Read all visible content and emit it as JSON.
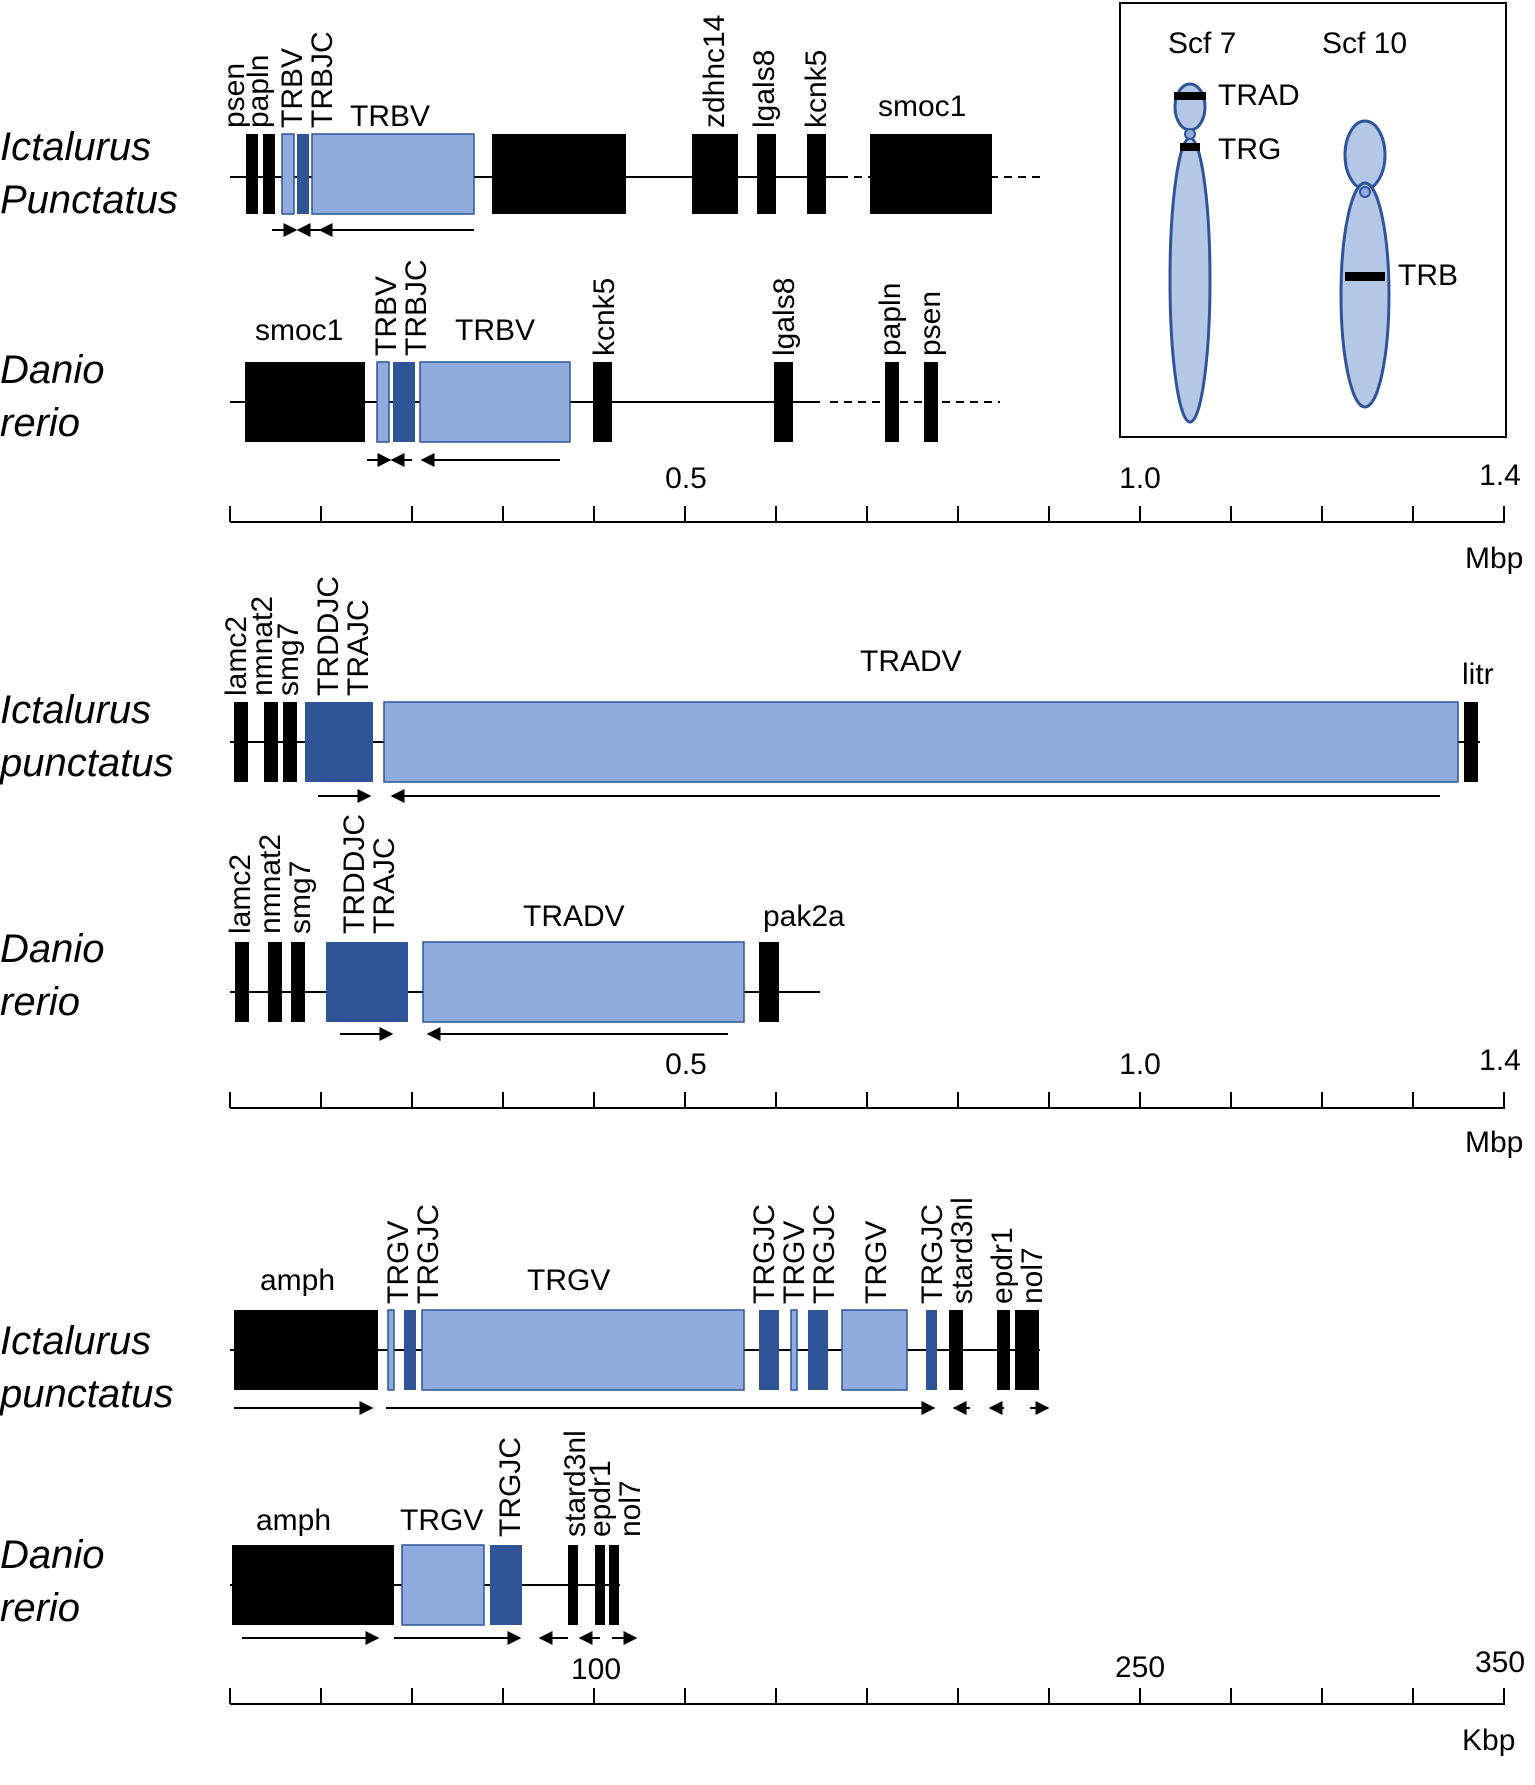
{
  "colors": {
    "black": "#000000",
    "light": "#8faadc",
    "dark": "#2f5597",
    "chrom": "#b4c7e7",
    "chromStroke": "#2f5597"
  },
  "inset": {
    "scf7_label": "Scf 7",
    "scf10_label": "Scf 10",
    "trad_label": "TRAD",
    "trg_label": "TRG",
    "trb_label": "TRB"
  },
  "panels": [
    {
      "unit": "Mbp",
      "tick_labels": [
        "0.5",
        "1.0",
        "1.4"
      ],
      "tracks": [
        {
          "species": [
            "Ictalurus",
            "Punctatus"
          ],
          "labels": [
            "psen",
            "papln",
            "TRBV",
            "TRBJC",
            "TRBV",
            "zdhhc14",
            "lgals8",
            "kcnk5",
            "smoc1"
          ]
        },
        {
          "species": [
            "Danio",
            "rerio"
          ],
          "labels": [
            "smoc1",
            "TRBV",
            "TRBJC",
            "TRBV",
            "kcnk5",
            "lgals8",
            "papln",
            "psen"
          ]
        }
      ]
    },
    {
      "unit": "Mbp",
      "tick_labels": [
        "0.5",
        "1.0",
        "1.4"
      ],
      "tracks": [
        {
          "species": [
            "Ictalurus",
            "punctatus"
          ],
          "labels": [
            "lamc2",
            "nmnat2",
            "smg7",
            "TRDDJC",
            "TRAJC",
            "TRADV",
            "litr"
          ]
        },
        {
          "species": [
            "Danio",
            "rerio"
          ],
          "labels": [
            "lamc2",
            "nmnat2",
            "smg7",
            "TRDDJC",
            "TRAJC",
            "TRADV",
            "pak2a"
          ]
        }
      ]
    },
    {
      "unit": "Kbp",
      "tick_labels": [
        "100",
        "250",
        "350"
      ],
      "tracks": [
        {
          "species": [
            "Ictalurus",
            "punctatus"
          ],
          "labels": [
            "amph",
            "TRGV",
            "TRGJC",
            "TRGV",
            "TRGJC",
            "TRGV",
            "TRGJC",
            "TRGV",
            "TRGJC",
            "stard3nl",
            "epdr1",
            "nol7"
          ]
        },
        {
          "species": [
            "Danio",
            "rerio"
          ],
          "labels": [
            "amph",
            "TRGV",
            "TRGJC",
            "stard3nl",
            "epdr1",
            "nol7"
          ]
        }
      ]
    }
  ]
}
